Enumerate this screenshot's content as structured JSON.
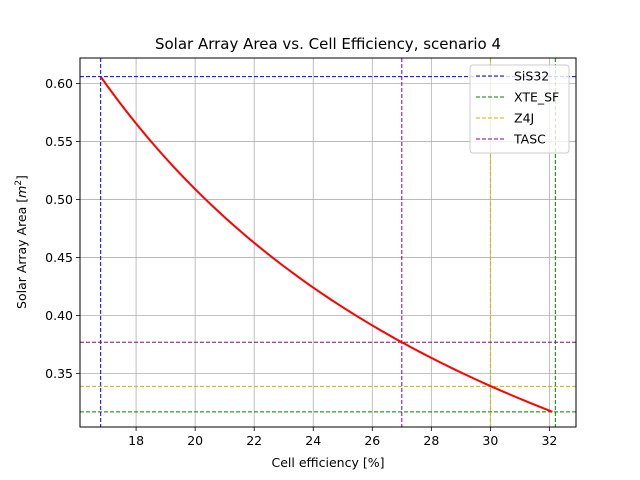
{
  "chart_data": {
    "type": "line",
    "title": "Solar Array Area vs. Cell Efficiency, scenario 4",
    "xlabel": "Cell efficiency [%]",
    "ylabel_main": "Solar Array Area [",
    "ylabel_unit": "m",
    "ylabel_exp": "2",
    "ylabel_close": "]",
    "xlim": [
      16.1,
      32.9
    ],
    "ylim": [
      0.304,
      0.622
    ],
    "xticks": [
      18,
      20,
      22,
      24,
      26,
      28,
      30,
      32
    ],
    "yticks": [
      0.35,
      0.4,
      0.45,
      0.5,
      0.55,
      0.6
    ],
    "ytick_labels": [
      "0.35",
      "0.40",
      "0.45",
      "0.50",
      "0.55",
      "0.60"
    ],
    "grid": true,
    "curve": {
      "color": "#ff0000",
      "relation": "area = k / efficiency",
      "k": 10.18,
      "x_start": 16.8,
      "x_end": 32.1
    },
    "reference_lines": [
      {
        "name": "SiS32",
        "color": "#0000ff",
        "x": 16.8,
        "y": 0.606
      },
      {
        "name": "XTE_SF",
        "color": "#008000",
        "x": 32.2,
        "y": 0.317
      },
      {
        "name": "Z4J",
        "color": "#c8b400",
        "x": 30.0,
        "y": 0.339
      },
      {
        "name": "TASC",
        "color": "#8b008b",
        "x": 27.0,
        "y": 0.377
      }
    ],
    "legend_position": "top-right"
  }
}
